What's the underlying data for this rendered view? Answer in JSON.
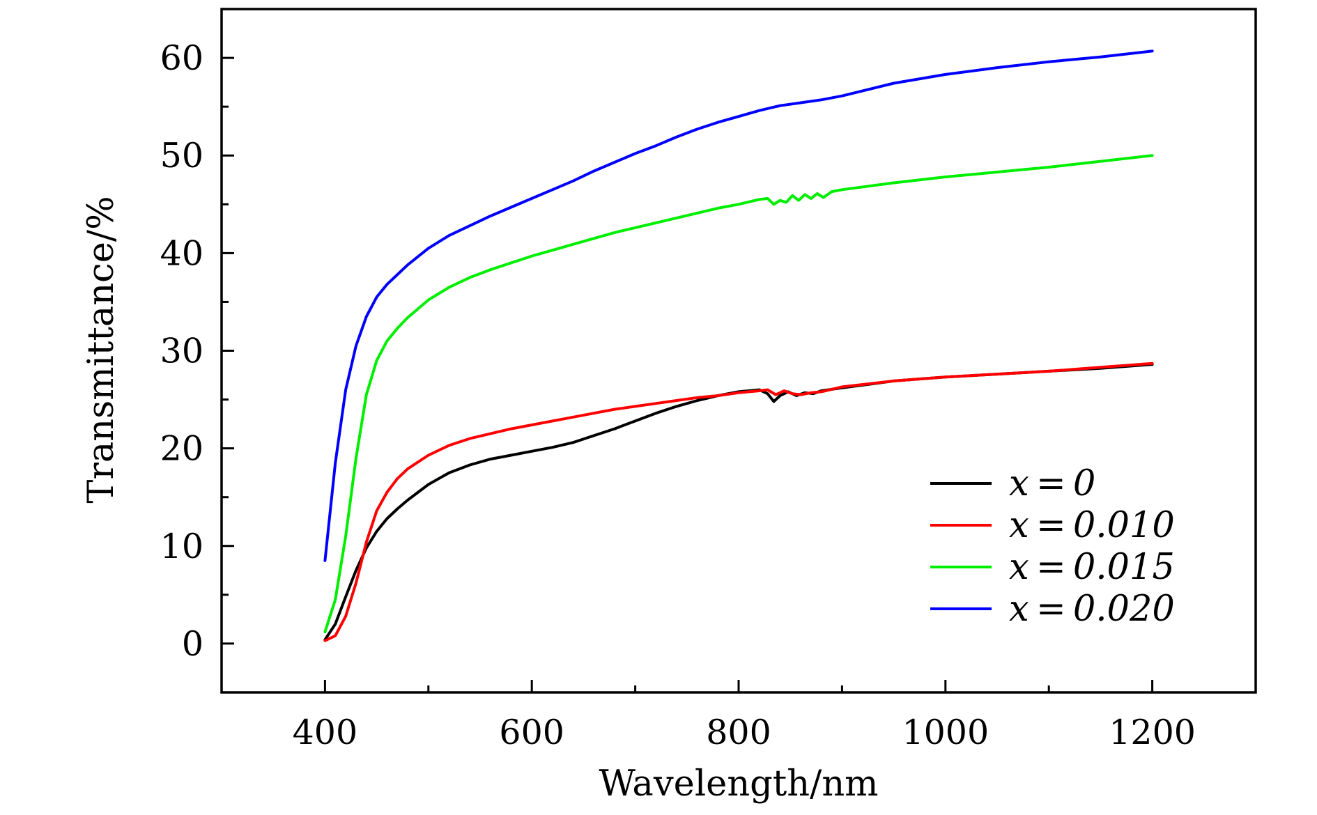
{
  "chart_data": {
    "type": "line",
    "title": "",
    "xlabel": "Wavelength/nm",
    "ylabel": "Transmittance/%",
    "xlim": [
      300,
      1300
    ],
    "ylim": [
      -5,
      65
    ],
    "x_ticks": [
      400,
      600,
      800,
      1000,
      1200
    ],
    "x_tick_labels": [
      "400",
      "600",
      "800",
      "1000",
      "1200"
    ],
    "x_minor_ticks": [
      500,
      700,
      900,
      1100
    ],
    "y_ticks": [
      0,
      10,
      20,
      30,
      40,
      50,
      60
    ],
    "y_tick_labels": [
      "0",
      "10",
      "20",
      "30",
      "40",
      "50",
      "60"
    ],
    "y_minor_ticks": [
      5,
      15,
      25,
      35,
      45,
      55
    ],
    "grid": false,
    "legend_position": "bottom-right",
    "series": [
      {
        "name": "x = 0",
        "label": "x = 0",
        "color": "#000000",
        "x": [
          400,
          410,
          420,
          430,
          440,
          450,
          460,
          470,
          480,
          500,
          520,
          540,
          560,
          580,
          600,
          620,
          640,
          660,
          680,
          700,
          720,
          740,
          760,
          780,
          800,
          820,
          828,
          834,
          840,
          848,
          856,
          864,
          872,
          880,
          900,
          950,
          1000,
          1050,
          1100,
          1150,
          1200
        ],
        "y": [
          0.4,
          2.0,
          4.8,
          7.5,
          9.8,
          11.5,
          12.8,
          13.8,
          14.7,
          16.3,
          17.5,
          18.3,
          18.9,
          19.3,
          19.7,
          20.1,
          20.6,
          21.3,
          22.0,
          22.8,
          23.6,
          24.3,
          24.9,
          25.4,
          25.8,
          26.0,
          25.6,
          24.8,
          25.4,
          25.8,
          25.4,
          25.7,
          25.6,
          25.9,
          26.2,
          26.9,
          27.3,
          27.6,
          27.9,
          28.2,
          28.6
        ]
      },
      {
        "name": "x = 0.010",
        "label": "x = 0.010",
        "color": "#ff0000",
        "x": [
          400,
          410,
          420,
          430,
          440,
          450,
          460,
          470,
          480,
          500,
          520,
          540,
          560,
          580,
          600,
          620,
          640,
          660,
          680,
          700,
          720,
          740,
          760,
          780,
          800,
          820,
          828,
          836,
          844,
          852,
          860,
          870,
          880,
          900,
          950,
          1000,
          1050,
          1100,
          1150,
          1200
        ],
        "y": [
          0.3,
          0.8,
          2.8,
          6.2,
          10.4,
          13.6,
          15.5,
          16.9,
          17.9,
          19.3,
          20.3,
          21.0,
          21.5,
          22.0,
          22.4,
          22.8,
          23.2,
          23.6,
          24.0,
          24.3,
          24.6,
          24.9,
          25.2,
          25.4,
          25.7,
          25.9,
          26.0,
          25.5,
          25.9,
          25.6,
          25.5,
          25.7,
          25.8,
          26.3,
          26.9,
          27.3,
          27.6,
          27.9,
          28.3,
          28.7
        ]
      },
      {
        "name": "x = 0.015",
        "label": "x = 0.015",
        "color": "#00ee00",
        "x": [
          400,
          410,
          420,
          430,
          440,
          450,
          460,
          470,
          480,
          500,
          520,
          540,
          560,
          580,
          600,
          620,
          640,
          660,
          680,
          700,
          720,
          740,
          760,
          780,
          800,
          820,
          828,
          834,
          840,
          846,
          852,
          858,
          864,
          870,
          876,
          882,
          890,
          900,
          950,
          1000,
          1050,
          1100,
          1150,
          1200
        ],
        "y": [
          1.2,
          4.5,
          11.0,
          19.0,
          25.5,
          29.0,
          31.0,
          32.3,
          33.4,
          35.2,
          36.5,
          37.5,
          38.3,
          39.0,
          39.7,
          40.3,
          40.9,
          41.5,
          42.1,
          42.6,
          43.1,
          43.6,
          44.1,
          44.6,
          45.0,
          45.5,
          45.6,
          45.0,
          45.4,
          45.2,
          45.9,
          45.4,
          46.0,
          45.6,
          46.1,
          45.7,
          46.3,
          46.5,
          47.2,
          47.8,
          48.3,
          48.8,
          49.4,
          50.0
        ]
      },
      {
        "name": "x = 0.020",
        "label": "x = 0.020",
        "color": "#0000ff",
        "x": [
          400,
          410,
          420,
          430,
          440,
          450,
          460,
          470,
          480,
          500,
          520,
          540,
          560,
          580,
          600,
          620,
          640,
          660,
          680,
          700,
          720,
          740,
          760,
          780,
          800,
          820,
          840,
          860,
          880,
          900,
          950,
          1000,
          1050,
          1100,
          1150,
          1200
        ],
        "y": [
          8.5,
          18.5,
          26.0,
          30.5,
          33.5,
          35.5,
          36.8,
          37.8,
          38.8,
          40.5,
          41.8,
          42.8,
          43.8,
          44.7,
          45.6,
          46.5,
          47.4,
          48.4,
          49.3,
          50.2,
          51.0,
          51.9,
          52.7,
          53.4,
          54.0,
          54.6,
          55.1,
          55.4,
          55.7,
          56.1,
          57.4,
          58.3,
          59.0,
          59.6,
          60.1,
          60.7
        ]
      }
    ]
  }
}
